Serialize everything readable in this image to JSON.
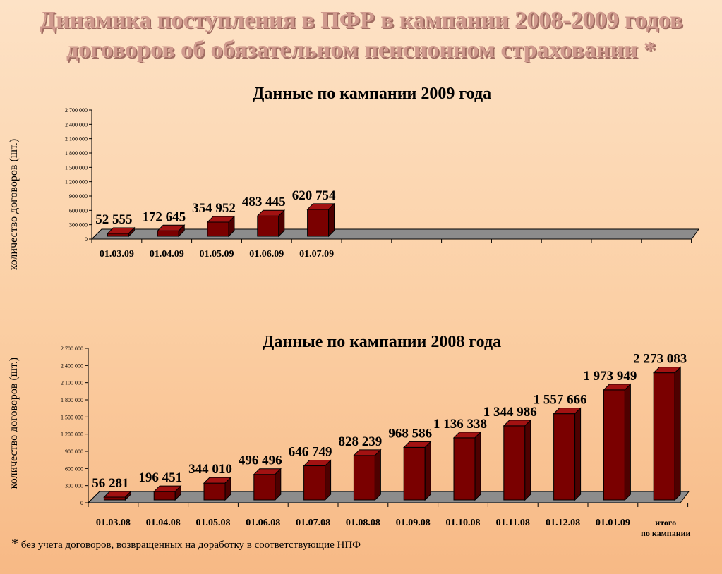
{
  "page": {
    "title_line1": "Динамика поступления в ПФР в кампании 2008-2009 годов",
    "title_line2": "договоров об обязательном пенсионном страховании *",
    "footnote_star": "*",
    "footnote": "без учета договоров, возвращенных на доработку в соответствующие НПФ"
  },
  "colors": {
    "bar_front": "#7a0000",
    "bar_top": "#a31212",
    "bar_side": "#4e0000",
    "floor": "#8c8c8c"
  },
  "chart_data": [
    {
      "type": "bar",
      "title": "Данные по кампании 2009 года",
      "ylabel": "количество договоров (шт.)",
      "ylim": [
        0,
        2700000
      ],
      "yticks": [
        "0",
        "300 000",
        "600 000",
        "900 000",
        "1 200 000",
        "1 500 000",
        "1 800 000",
        "2 100 000",
        "2 400 000",
        "2 700 000"
      ],
      "categories": [
        "01.03.09",
        "01.04.09",
        "01.05.09",
        "01.06.09",
        "01.07.09"
      ],
      "values": [
        52555,
        172645,
        354952,
        483445,
        620754
      ],
      "data_labels": [
        "52 555",
        "172 645",
        "354 952",
        "483 445",
        "620 754"
      ]
    },
    {
      "type": "bar",
      "title": "Данные по кампании 2008 года",
      "ylabel": "количество договоров (шт.)",
      "ylim": [
        0,
        2700000
      ],
      "yticks": [
        "0",
        "300 000",
        "600 000",
        "900 000",
        "1 200 000",
        "1 500 000",
        "1 800 000",
        "2 100 000",
        "2 400 000",
        "2 700 000"
      ],
      "categories": [
        "01.03.08",
        "01.04.08",
        "01.05.08",
        "01.06.08",
        "01.07.08",
        "01.08.08",
        "01.09.08",
        "01.10.08",
        "01.11.08",
        "01.12.08",
        "01.01.09",
        "итого по кампании"
      ],
      "values": [
        56281,
        196451,
        344010,
        496496,
        646749,
        828239,
        968586,
        1136338,
        1344986,
        1557666,
        1973949,
        2273083
      ],
      "data_labels": [
        "56 281",
        "196 451",
        "344 010",
        "496 496",
        "646 749",
        "828 239",
        "968 586",
        "1 136 338",
        "1 344 986",
        "1 557 666",
        "1 973 949",
        "2 273 083"
      ]
    }
  ]
}
